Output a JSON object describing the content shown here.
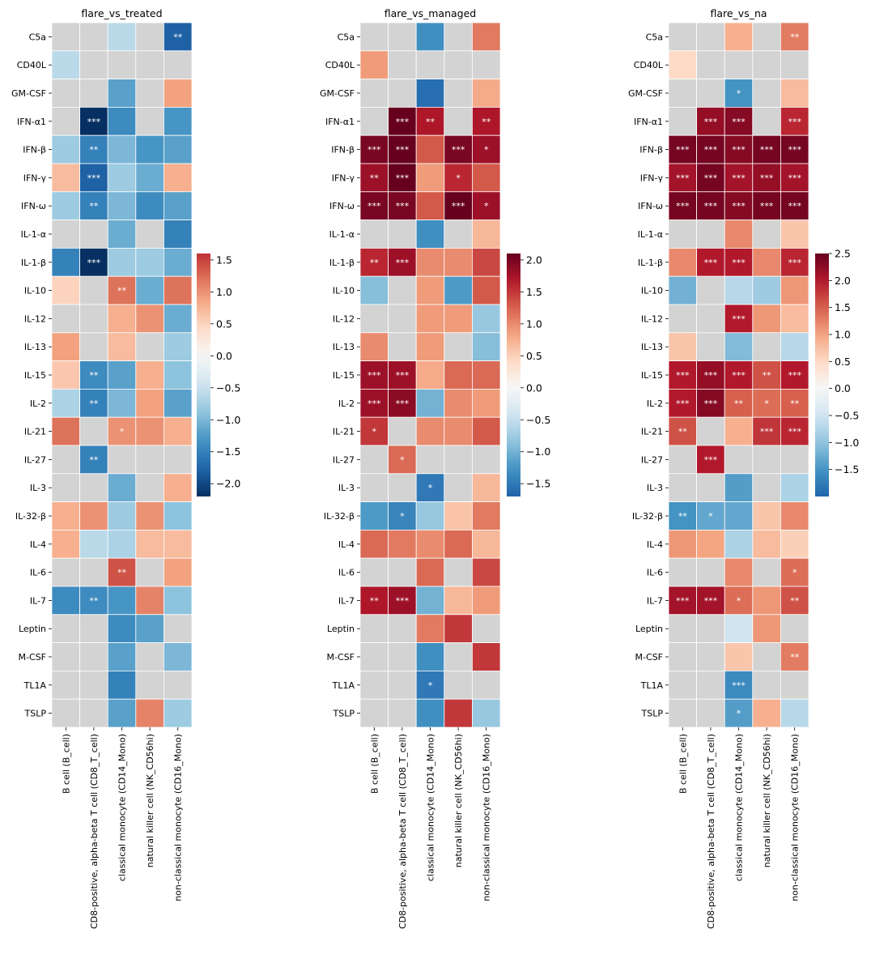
{
  "chart_data": {
    "type": "heatmap",
    "rows": [
      "C5a",
      "CD40L",
      "GM-CSF",
      "IFN-α1",
      "IFN-β",
      "IFN-γ",
      "IFN-ω",
      "IL-1-α",
      "IL-1-β",
      "IL-10",
      "IL-12",
      "IL-13",
      "IL-15",
      "IL-2",
      "IL-21",
      "IL-27",
      "IL-3",
      "IL-32-β",
      "IL-4",
      "IL-6",
      "IL-7",
      "Leptin",
      "M-CSF",
      "TL1A",
      "TSLP"
    ],
    "columns": [
      "B cell (B_cell)",
      "CD8-positive, alpha-beta T cell (CD8_T_cell)",
      "classical monocyte (CD14_Mono)",
      "natural killer cell (NK_CD56hi)",
      "non-classical monocyte (CD16_Mono)"
    ],
    "missing_color": "#d3d3d3",
    "colormap": "RdBu_r",
    "panels": [
      {
        "title": "flare_vs_treated",
        "vmin": -2.2,
        "vmax": 1.6,
        "colorbar_ticks": [
          "1.5",
          "1.0",
          "0.5",
          "0.0",
          "−0.5",
          "−1.0",
          "−1.5",
          "−2.0"
        ],
        "colorbar_tick_values": [
          1.5,
          1.0,
          0.5,
          0.0,
          -0.5,
          -1.0,
          -1.5,
          -2.0
        ],
        "values": [
          [
            null,
            null,
            -0.6,
            null,
            -1.8
          ],
          [
            -0.6,
            null,
            null,
            null,
            null
          ],
          [
            null,
            null,
            -1.2,
            null,
            0.9
          ],
          [
            null,
            -2.2,
            -1.4,
            null,
            -1.3
          ],
          [
            -0.8,
            -1.5,
            -1.0,
            -1.3,
            -1.2
          ],
          [
            0.7,
            -1.8,
            -0.8,
            -1.1,
            0.8
          ],
          [
            -0.8,
            -1.5,
            -1.0,
            -1.4,
            -1.2
          ],
          [
            null,
            null,
            -1.1,
            null,
            -1.5
          ],
          [
            -1.5,
            -2.2,
            -0.8,
            -0.8,
            -1.1
          ],
          [
            0.5,
            null,
            1.2,
            -1.1,
            1.2
          ],
          [
            null,
            null,
            0.8,
            1.0,
            -1.1
          ],
          [
            0.9,
            null,
            0.7,
            null,
            -0.8
          ],
          [
            0.6,
            -1.4,
            -1.2,
            0.8,
            -0.9
          ],
          [
            -0.7,
            -1.5,
            -1.0,
            0.9,
            -1.2
          ],
          [
            1.2,
            null,
            1.0,
            1.0,
            0.8
          ],
          [
            null,
            -1.5,
            null,
            null,
            null
          ],
          [
            null,
            null,
            -1.1,
            null,
            0.8
          ],
          [
            0.8,
            1.0,
            -0.8,
            1.0,
            -0.9
          ],
          [
            0.8,
            -0.6,
            -0.7,
            0.7,
            0.7
          ],
          [
            null,
            null,
            1.4,
            null,
            0.9
          ],
          [
            -1.4,
            -1.4,
            -1.3,
            1.1,
            -0.9
          ],
          [
            null,
            null,
            -1.4,
            -1.2,
            null
          ],
          [
            null,
            null,
            -1.2,
            null,
            -1.0
          ],
          [
            null,
            null,
            -1.5,
            null,
            null
          ],
          [
            null,
            null,
            -1.2,
            1.1,
            -0.8
          ]
        ],
        "stars": [
          [
            "",
            "",
            "",
            "",
            "**"
          ],
          [
            "",
            "",
            "",
            "",
            ""
          ],
          [
            "",
            "",
            "",
            "",
            ""
          ],
          [
            "",
            "***",
            "",
            "",
            ""
          ],
          [
            "",
            "**",
            "",
            "",
            ""
          ],
          [
            "",
            "***",
            "",
            "",
            ""
          ],
          [
            "",
            "**",
            "",
            "",
            ""
          ],
          [
            "",
            "",
            "",
            "",
            ""
          ],
          [
            "",
            "***",
            "",
            "",
            ""
          ],
          [
            "",
            "",
            "**",
            "",
            ""
          ],
          [
            "",
            "",
            "",
            "",
            ""
          ],
          [
            "",
            "",
            "",
            "",
            ""
          ],
          [
            "",
            "**",
            "",
            "",
            ""
          ],
          [
            "",
            "**",
            "",
            "",
            ""
          ],
          [
            "",
            "",
            "*",
            "",
            ""
          ],
          [
            "",
            "**",
            "",
            "",
            ""
          ],
          [
            "",
            "",
            "",
            "",
            ""
          ],
          [
            "",
            "",
            "",
            "",
            ""
          ],
          [
            "",
            "",
            "",
            "",
            ""
          ],
          [
            "",
            "",
            "**",
            "",
            ""
          ],
          [
            "",
            "**",
            "",
            "",
            ""
          ],
          [
            "",
            "",
            "",
            "",
            ""
          ],
          [
            "",
            "",
            "",
            "",
            ""
          ],
          [
            "",
            "",
            "",
            "",
            ""
          ],
          [
            "",
            "",
            "",
            "",
            ""
          ]
        ]
      },
      {
        "title": "flare_vs_managed",
        "vmin": -1.7,
        "vmax": 2.1,
        "colorbar_ticks": [
          "2.0",
          "1.5",
          "1.0",
          "0.5",
          "0.0",
          "−0.5",
          "−1.0",
          "−1.5"
        ],
        "colorbar_tick_values": [
          2.0,
          1.5,
          1.0,
          0.5,
          0.0,
          -0.5,
          -1.0,
          -1.5
        ],
        "values": [
          [
            null,
            null,
            -1.3,
            null,
            1.1
          ],
          [
            0.9,
            null,
            null,
            null,
            null
          ],
          [
            null,
            null,
            -1.6,
            null,
            0.8
          ],
          [
            null,
            2.1,
            1.7,
            null,
            1.7
          ],
          [
            2.0,
            2.1,
            1.3,
            2.0,
            1.8
          ],
          [
            1.8,
            2.1,
            0.9,
            1.6,
            1.3
          ],
          [
            2.0,
            2.0,
            1.3,
            2.1,
            1.8
          ],
          [
            null,
            null,
            -1.3,
            null,
            0.7
          ],
          [
            1.6,
            1.8,
            1.0,
            1.0,
            1.4
          ],
          [
            -0.9,
            null,
            0.9,
            -1.2,
            1.3
          ],
          [
            null,
            null,
            0.9,
            0.9,
            -0.8
          ],
          [
            1.0,
            null,
            0.9,
            null,
            -0.9
          ],
          [
            1.8,
            1.8,
            0.8,
            1.2,
            1.2
          ],
          [
            1.8,
            1.9,
            -1.0,
            1.0,
            0.9
          ],
          [
            1.5,
            null,
            1.0,
            1.0,
            1.3
          ],
          [
            null,
            1.2,
            null,
            null,
            null
          ],
          [
            null,
            null,
            -1.5,
            null,
            0.7
          ],
          [
            -1.2,
            -1.4,
            -0.8,
            0.6,
            1.1
          ],
          [
            1.2,
            1.1,
            1.0,
            1.2,
            0.7
          ],
          [
            null,
            null,
            1.2,
            null,
            1.4
          ],
          [
            1.7,
            1.8,
            -1.0,
            0.7,
            0.9
          ],
          [
            null,
            null,
            1.1,
            1.5,
            null
          ],
          [
            null,
            null,
            -1.3,
            null,
            1.5
          ],
          [
            null,
            null,
            -1.5,
            null,
            null
          ],
          [
            null,
            null,
            -1.3,
            1.5,
            -0.8
          ]
        ],
        "stars": [
          [
            "",
            "",
            "",
            "",
            ""
          ],
          [
            "",
            "",
            "",
            "",
            ""
          ],
          [
            "",
            "",
            "",
            "",
            ""
          ],
          [
            "",
            "***",
            "**",
            "",
            "**"
          ],
          [
            "***",
            "***",
            "",
            "***",
            "*"
          ],
          [
            "**",
            "***",
            "",
            "*",
            ""
          ],
          [
            "***",
            "***",
            "",
            "***",
            "*"
          ],
          [
            "",
            "",
            "",
            "",
            ""
          ],
          [
            "**",
            "***",
            "",
            "",
            ""
          ],
          [
            "",
            "",
            "",
            "",
            ""
          ],
          [
            "",
            "",
            "",
            "",
            ""
          ],
          [
            "",
            "",
            "",
            "",
            ""
          ],
          [
            "***",
            "***",
            "",
            "",
            ""
          ],
          [
            "***",
            "***",
            "",
            "",
            ""
          ],
          [
            "*",
            "",
            "",
            "",
            ""
          ],
          [
            "",
            "*",
            "",
            "",
            ""
          ],
          [
            "",
            "",
            "*",
            "",
            ""
          ],
          [
            "",
            "*",
            "",
            "",
            ""
          ],
          [
            "",
            "",
            "",
            "",
            ""
          ],
          [
            "",
            "",
            "",
            "",
            ""
          ],
          [
            "**",
            "***",
            "",
            "",
            ""
          ],
          [
            "",
            "",
            "",
            "",
            ""
          ],
          [
            "",
            "",
            "",
            "",
            ""
          ],
          [
            "",
            "",
            "*",
            "",
            ""
          ],
          [
            "",
            "",
            "",
            "",
            ""
          ]
        ]
      },
      {
        "title": "flare_vs_na",
        "vmin": -2.0,
        "vmax": 2.5,
        "colorbar_ticks": [
          "2.5",
          "2.0",
          "1.5",
          "1.0",
          "0.5",
          "0.0",
          "−0.5",
          "−1.0",
          "−1.5"
        ],
        "colorbar_tick_values": [
          2.5,
          2.0,
          1.5,
          1.0,
          0.5,
          0.0,
          -0.5,
          -1.0,
          -1.5
        ],
        "values": [
          [
            null,
            null,
            0.9,
            null,
            1.3
          ],
          [
            0.5,
            null,
            null,
            null,
            null
          ],
          [
            null,
            null,
            -1.5,
            null,
            0.8
          ],
          [
            null,
            2.2,
            2.3,
            null,
            1.9
          ],
          [
            2.4,
            2.4,
            2.3,
            2.4,
            2.4
          ],
          [
            2.1,
            2.4,
            2.1,
            2.2,
            2.1
          ],
          [
            2.4,
            2.4,
            2.3,
            2.4,
            2.4
          ],
          [
            null,
            null,
            1.2,
            null,
            0.7
          ],
          [
            1.2,
            2.0,
            2.0,
            1.2,
            1.9
          ],
          [
            -1.2,
            null,
            -0.7,
            -0.9,
            1.1
          ],
          [
            null,
            null,
            2.0,
            1.1,
            0.8
          ],
          [
            0.7,
            null,
            -1.1,
            null,
            -0.7
          ],
          [
            2.0,
            2.2,
            2.0,
            1.6,
            2.0
          ],
          [
            2.0,
            2.3,
            1.5,
            1.4,
            1.5
          ],
          [
            1.6,
            null,
            0.9,
            1.8,
            1.9
          ],
          [
            null,
            2.0,
            null,
            null,
            null
          ],
          [
            null,
            null,
            -1.4,
            null,
            -0.8
          ],
          [
            -1.5,
            -1.3,
            -1.3,
            0.7,
            1.2
          ],
          [
            1.1,
            1.0,
            -0.8,
            0.8,
            0.6
          ],
          [
            null,
            null,
            1.2,
            null,
            1.4
          ],
          [
            2.1,
            2.1,
            1.4,
            1.1,
            1.6
          ],
          [
            null,
            null,
            -0.5,
            1.1,
            null
          ],
          [
            null,
            null,
            0.7,
            null,
            1.3
          ],
          [
            null,
            null,
            -1.6,
            null,
            null
          ],
          [
            null,
            null,
            -1.4,
            0.9,
            -0.7
          ]
        ],
        "stars": [
          [
            "",
            "",
            "",
            "",
            "**"
          ],
          [
            "",
            "",
            "",
            "",
            ""
          ],
          [
            "",
            "",
            "*",
            "",
            ""
          ],
          [
            "",
            "***",
            "***",
            "",
            "***"
          ],
          [
            "***",
            "***",
            "***",
            "***",
            "***"
          ],
          [
            "***",
            "***",
            "***",
            "***",
            "***"
          ],
          [
            "***",
            "***",
            "***",
            "***",
            "***"
          ],
          [
            "",
            "",
            "",
            "",
            ""
          ],
          [
            "",
            "***",
            "***",
            "",
            "***"
          ],
          [
            "",
            "",
            "",
            "",
            ""
          ],
          [
            "",
            "",
            "***",
            "",
            ""
          ],
          [
            "",
            "",
            "",
            "",
            ""
          ],
          [
            "***",
            "***",
            "***",
            "**",
            "***"
          ],
          [
            "***",
            "***",
            "**",
            "*",
            "**"
          ],
          [
            "**",
            "",
            "",
            "***",
            "***"
          ],
          [
            "",
            "***",
            "",
            "",
            ""
          ],
          [
            "",
            "",
            "",
            "",
            ""
          ],
          [
            "**",
            "*",
            "",
            "",
            ""
          ],
          [
            "",
            "",
            "",
            "",
            ""
          ],
          [
            "",
            "",
            "",
            "",
            "*"
          ],
          [
            "***",
            "***",
            "*",
            "",
            "**"
          ],
          [
            "",
            "",
            "",
            "",
            ""
          ],
          [
            "",
            "",
            "",
            "",
            "**"
          ],
          [
            "",
            "",
            "***",
            "",
            ""
          ],
          [
            "",
            "",
            "*",
            "",
            ""
          ]
        ]
      }
    ]
  }
}
